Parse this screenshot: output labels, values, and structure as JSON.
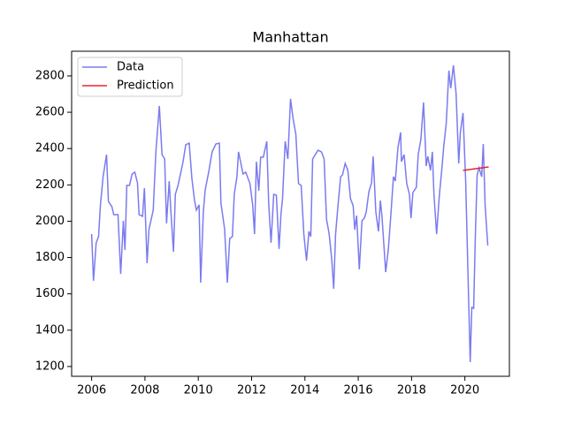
{
  "chart_data": {
    "type": "line",
    "title": "Manhattan",
    "xlim": [
      2005.25,
      2021.67
    ],
    "ylim": [
      1146,
      2936
    ],
    "xticks": [
      2006,
      2008,
      2010,
      2012,
      2014,
      2016,
      2018,
      2020
    ],
    "yticks": [
      1200,
      1400,
      1600,
      1800,
      2000,
      2200,
      2400,
      2600,
      2800
    ],
    "legend": "upper left",
    "series": [
      {
        "name": "Data",
        "color": "#7b7bf0",
        "x": [
          2006.0,
          2006.07,
          2006.17,
          2006.26,
          2006.33,
          2006.43,
          2006.56,
          2006.63,
          2006.76,
          2006.83,
          2006.99,
          2007.09,
          2007.19,
          2007.25,
          2007.32,
          2007.42,
          2007.52,
          2007.62,
          2007.72,
          2007.78,
          2007.91,
          2007.98,
          2008.08,
          2008.15,
          2008.31,
          2008.41,
          2008.54,
          2008.64,
          2008.74,
          2008.81,
          2008.91,
          2008.97,
          2009.07,
          2009.14,
          2009.24,
          2009.34,
          2009.43,
          2009.53,
          2009.66,
          2009.76,
          2009.86,
          2009.93,
          2010.03,
          2010.09,
          2010.19,
          2010.26,
          2010.39,
          2010.52,
          2010.66,
          2010.79,
          2010.85,
          2010.99,
          2011.09,
          2011.18,
          2011.28,
          2011.35,
          2011.45,
          2011.51,
          2011.68,
          2011.78,
          2011.94,
          2012.04,
          2012.11,
          2012.18,
          2012.27,
          2012.34,
          2012.44,
          2012.57,
          2012.64,
          2012.73,
          2012.83,
          2012.93,
          2013.03,
          2013.1,
          2013.16,
          2013.26,
          2013.36,
          2013.46,
          2013.56,
          2013.66,
          2013.76,
          2013.86,
          2013.96,
          2014.06,
          2014.15,
          2014.22,
          2014.29,
          2014.39,
          2014.49,
          2014.62,
          2014.72,
          2014.81,
          2014.91,
          2015.01,
          2015.08,
          2015.15,
          2015.24,
          2015.34,
          2015.41,
          2015.51,
          2015.61,
          2015.71,
          2015.81,
          2015.87,
          2015.94,
          2016.04,
          2016.14,
          2016.23,
          2016.3,
          2016.4,
          2016.5,
          2016.56,
          2016.66,
          2016.76,
          2016.83,
          2016.89,
          2017.03,
          2017.13,
          2017.22,
          2017.32,
          2017.39,
          2017.49,
          2017.59,
          2017.62,
          2017.72,
          2017.82,
          2017.92,
          2017.98,
          2018.05,
          2018.18,
          2018.25,
          2018.35,
          2018.45,
          2018.55,
          2018.61,
          2018.71,
          2018.78,
          2018.84,
          2018.94,
          2019.04,
          2019.14,
          2019.21,
          2019.3,
          2019.4,
          2019.47,
          2019.57,
          2019.67,
          2019.77,
          2019.83,
          2019.93,
          2020.03,
          2020.1,
          2020.2,
          2020.26,
          2020.33,
          2020.39,
          2020.46,
          2020.53,
          2020.63,
          2020.69,
          2020.76,
          2020.86
        ],
        "values": [
          1929,
          1672,
          1881,
          1915,
          2090,
          2245,
          2367,
          2109,
          2080,
          2036,
          2036,
          1710,
          2002,
          1842,
          2197,
          2197,
          2260,
          2270,
          2211,
          2036,
          2027,
          2182,
          1769,
          1954,
          2061,
          2382,
          2635,
          2367,
          2343,
          1988,
          2221,
          2061,
          1832,
          2148,
          2197,
          2265,
          2328,
          2421,
          2430,
          2236,
          2114,
          2061,
          2090,
          1662,
          2051,
          2173,
          2270,
          2382,
          2425,
          2430,
          2100,
          1954,
          1662,
          1905,
          1915,
          2148,
          2245,
          2382,
          2260,
          2270,
          2207,
          2090,
          1929,
          2328,
          2168,
          2353,
          2353,
          2440,
          2100,
          1881,
          2148,
          2143,
          1847,
          2036,
          2124,
          2440,
          2343,
          2674,
          2562,
          2479,
          2207,
          2197,
          1929,
          1783,
          1944,
          1915,
          2343,
          2367,
          2391,
          2382,
          2343,
          2012,
          1929,
          1783,
          1628,
          1929,
          2085,
          2245,
          2255,
          2318,
          2280,
          2124,
          2085,
          1954,
          2031,
          1735,
          2002,
          2017,
          2051,
          2163,
          2211,
          2357,
          2051,
          1944,
          2114,
          2027,
          1720,
          1847,
          2027,
          2245,
          2221,
          2406,
          2489,
          2328,
          2367,
          2207,
          2148,
          2017,
          2158,
          2187,
          2367,
          2450,
          2654,
          2304,
          2357,
          2280,
          2382,
          2148,
          1929,
          2138,
          2294,
          2416,
          2537,
          2829,
          2732,
          2858,
          2703,
          2318,
          2489,
          2596,
          2221,
          1808,
          1224,
          1526,
          1521,
          1905,
          2255,
          2294,
          2245,
          2425,
          2085,
          1866
        ]
      },
      {
        "name": "Prediction",
        "color": "#e8272b",
        "x": [
          2019.93,
          2020.89
        ],
        "values": [
          2280,
          2299
        ]
      }
    ]
  }
}
